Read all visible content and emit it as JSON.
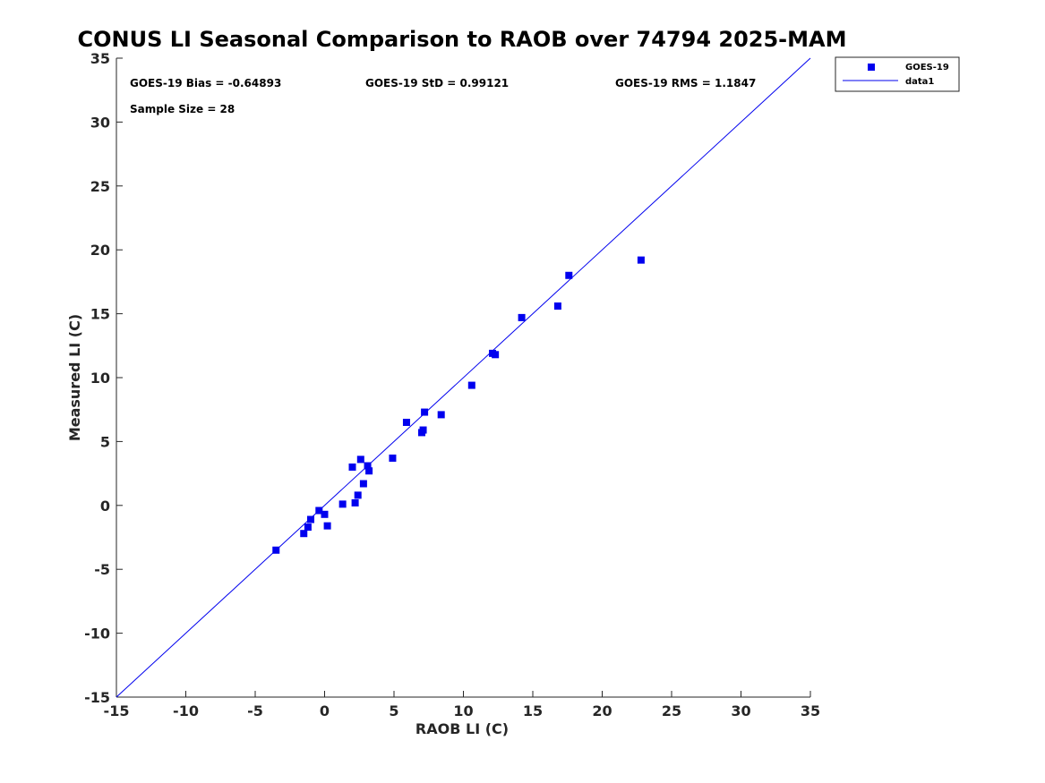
{
  "chart_data": {
    "type": "scatter",
    "title": "CONUS LI Seasonal Comparison to RAOB over 74794 2025-MAM",
    "xlabel": "RAOB LI (C)",
    "ylabel": "Measured LI (C)",
    "xlim": [
      -15,
      35
    ],
    "ylim": [
      -15,
      35
    ],
    "xticks": [
      "-15",
      "-10",
      "-5",
      "0",
      "5",
      "10",
      "15",
      "20",
      "25",
      "30",
      "35"
    ],
    "yticks": [
      "-15",
      "-10",
      "-5",
      "0",
      "5",
      "10",
      "15",
      "20",
      "25",
      "30",
      "35"
    ],
    "grid": false,
    "legend_position": "top-right outside",
    "stats": {
      "bias": "GOES-19 Bias = -0.64893",
      "std": "GOES-19 StD = 0.99121",
      "rms": "GOES-19 RMS = 1.1847",
      "sample": "Sample Size = 28"
    },
    "series": [
      {
        "name": "GOES-19",
        "marker": "square",
        "color": "#0000ee",
        "points": [
          [
            -3.5,
            -3.5
          ],
          [
            -1.5,
            -2.2
          ],
          [
            -1.2,
            -1.7
          ],
          [
            -1.0,
            -1.1
          ],
          [
            -0.4,
            -0.4
          ],
          [
            0.0,
            -0.7
          ],
          [
            0.2,
            -1.6
          ],
          [
            1.3,
            0.1
          ],
          [
            2.0,
            3.0
          ],
          [
            2.2,
            0.2
          ],
          [
            2.4,
            0.8
          ],
          [
            2.6,
            3.6
          ],
          [
            2.8,
            1.7
          ],
          [
            3.1,
            3.1
          ],
          [
            3.2,
            2.7
          ],
          [
            4.9,
            3.7
          ],
          [
            5.9,
            6.5
          ],
          [
            7.0,
            5.7
          ],
          [
            7.1,
            5.9
          ],
          [
            7.2,
            7.3
          ],
          [
            8.4,
            7.1
          ],
          [
            10.6,
            9.4
          ],
          [
            12.1,
            11.9
          ],
          [
            12.3,
            11.8
          ],
          [
            14.2,
            14.7
          ],
          [
            16.8,
            15.6
          ],
          [
            17.6,
            18.0
          ],
          [
            22.8,
            19.2
          ]
        ]
      },
      {
        "name": "data1",
        "type": "line",
        "color": "#0000ee",
        "x": [
          -15,
          35
        ],
        "y": [
          -15,
          35
        ]
      }
    ]
  }
}
